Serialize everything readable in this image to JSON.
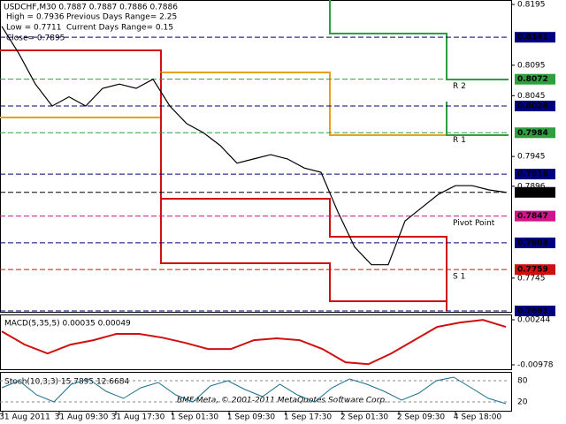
{
  "chart_data": {
    "type": "line",
    "title": "USDCHF,M30  0.7887 0.7887 0.7886 0.7886",
    "info": [
      "High = 0.7936",
      "Low = 0.7711",
      "Close= 0.7895"
    ],
    "ranges": [
      "Previous Days Range= 2.25",
      "Current Days Range= 0.15"
    ],
    "ylim": [
      0.7691,
      0.8195
    ],
    "yticks": [
      0.8195,
      0.8095,
      0.8045,
      0.7945,
      0.7896,
      0.7745
    ],
    "levels": [
      {
        "value": 0.8141,
        "color": "#000080"
      },
      {
        "value": 0.8072,
        "color": "#2e9e3e",
        "label": "R 2"
      },
      {
        "value": 0.8028,
        "color": "#000080"
      },
      {
        "value": 0.7984,
        "color": "#2e9e3e",
        "label": "R 1"
      },
      {
        "value": 0.7916,
        "color": "#000080"
      },
      {
        "value": 0.7886,
        "color": "#000000"
      },
      {
        "value": 0.7847,
        "color": "#d0148c",
        "label": "Pivot Point"
      },
      {
        "value": 0.7803,
        "color": "#000080"
      },
      {
        "value": 0.7759,
        "color": "#d01010",
        "label": "S 1"
      },
      {
        "value": 0.7691,
        "color": "#000080"
      }
    ],
    "series": [
      {
        "name": "Close",
        "color": "#000000",
        "values": [
          0.8159,
          0.8115,
          0.8064,
          0.8028,
          0.8043,
          0.8028,
          0.8057,
          0.8064,
          0.8057,
          0.8072,
          0.8028,
          0.7999,
          0.7984,
          0.7963,
          0.7934,
          0.7941,
          0.7948,
          0.7941,
          0.7926,
          0.7919,
          0.7854,
          0.7796,
          0.7767,
          0.7767,
          0.7839,
          0.7861,
          0.7883,
          0.7897,
          0.7897,
          0.789,
          0.7886
        ]
      }
    ],
    "x_labels": [
      "31 Aug 2011",
      "31 Aug 09:30",
      "31 Aug 17:30",
      "1 Sep 01:30",
      "1 Sep 09:30",
      "1 Sep 17:30",
      "2 Sep 01:30",
      "2 Sep 09:30",
      "4 Sep 18:00"
    ],
    "macd": {
      "label": "MACD(5,35,5) 0.00035 0.00049",
      "ylim": [
        -0.00978,
        0.00244
      ],
      "yticks": [
        {
          "value": 0.00244,
          "label": "0.00244"
        },
        {
          "value": -0.00978,
          "label": "-0.00978"
        }
      ],
      "color": "#d01010",
      "values": [
        -0.0007,
        -0.0043,
        -0.0067,
        -0.0043,
        -0.0031,
        -0.0014,
        -0.0014,
        -0.0024,
        -0.0038,
        -0.0055,
        -0.0055,
        -0.0031,
        -0.0026,
        -0.0031,
        -0.0055,
        -0.0091,
        -0.0096,
        -0.0067,
        -0.0031,
        0.0005,
        0.0017,
        0.0024,
        0.0005
      ]
    },
    "stoch": {
      "label": "Stoch(10,3,3) 15.7895 12.6684",
      "ylim": [
        0,
        100
      ],
      "yticks": [
        80,
        20
      ],
      "color": "#1a6e8e",
      "values": [
        60,
        80,
        40,
        20,
        70,
        85,
        50,
        30,
        60,
        75,
        40,
        20,
        65,
        80,
        55,
        35,
        70,
        40,
        20,
        60,
        85,
        70,
        50,
        25,
        45,
        80,
        90,
        60,
        30,
        15
      ]
    },
    "copyright": "BMF-Meta, © 2001-2011 MetaQuotes Software Corp."
  }
}
